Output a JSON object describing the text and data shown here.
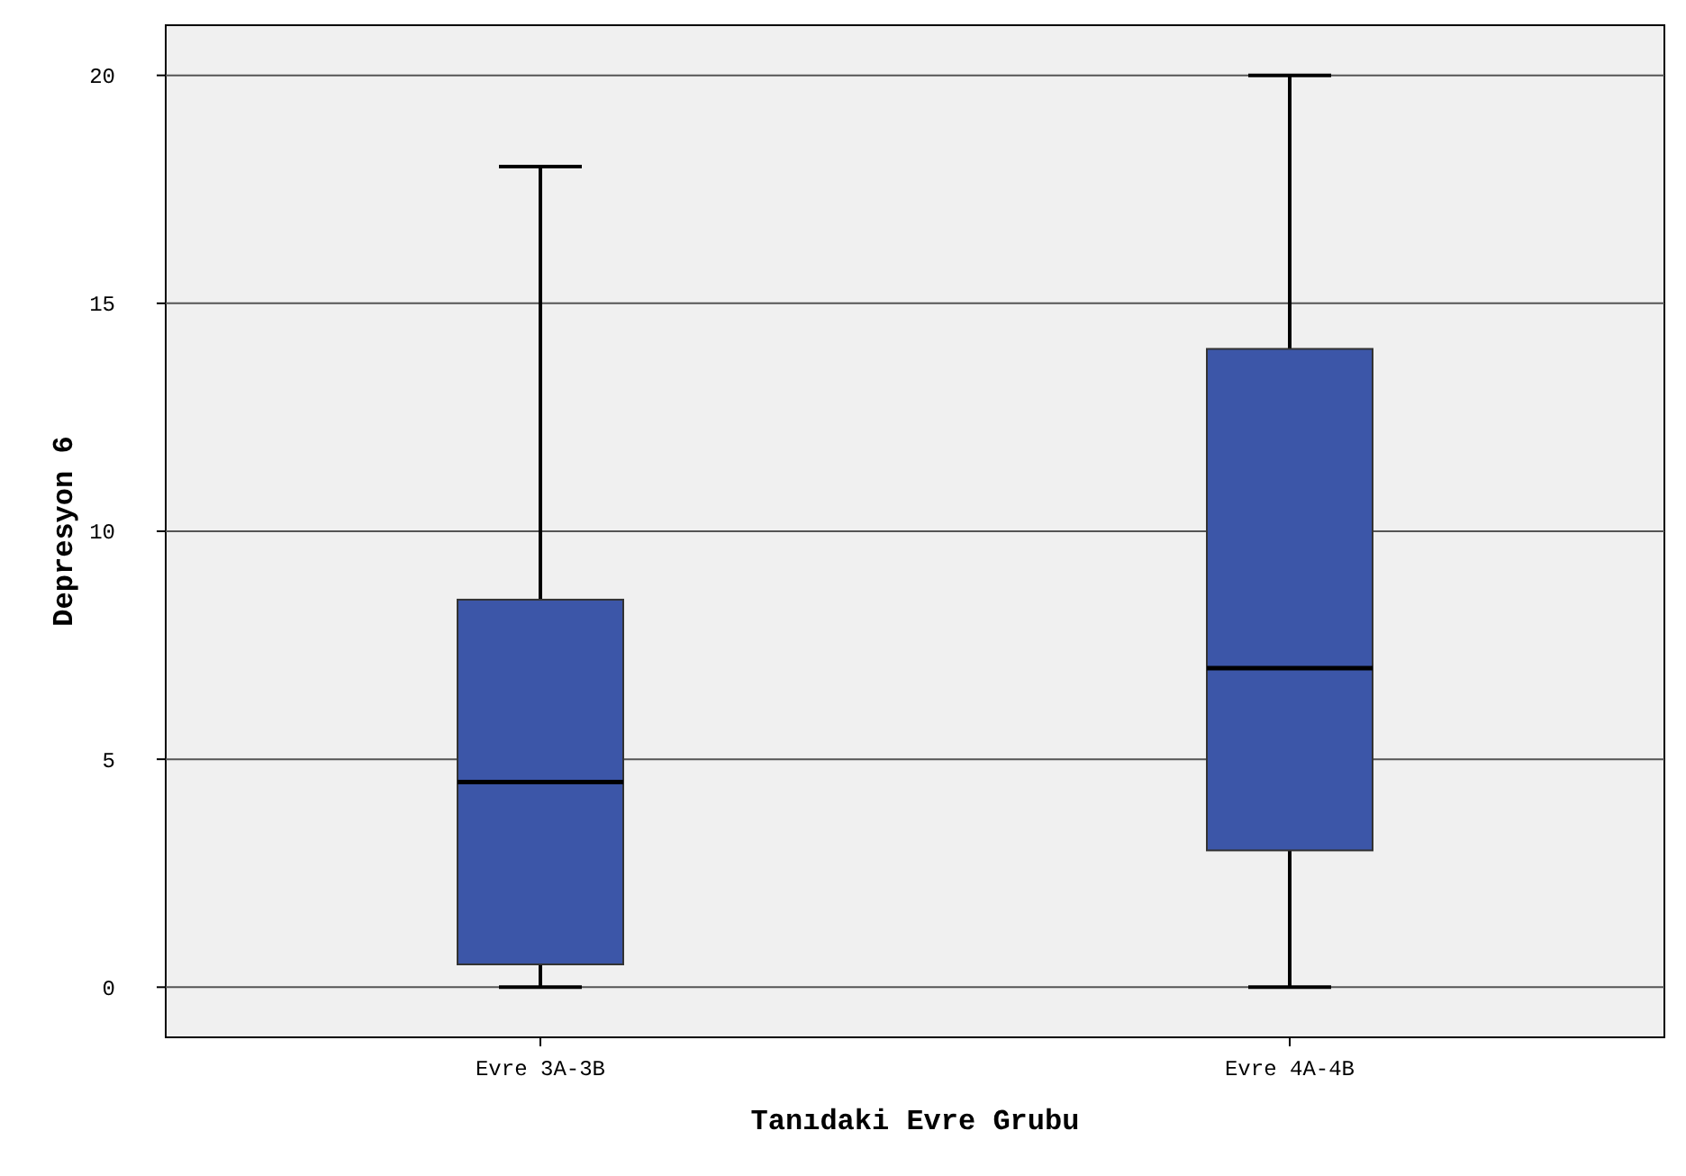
{
  "chart_data": {
    "type": "box",
    "xlabel": "Tanıdaki Evre Grubu",
    "ylabel": "Depresyon 6",
    "categories": [
      "Evre 3A-3B",
      "Evre 4A-4B"
    ],
    "boxes": [
      {
        "low": 0,
        "q1": 0.5,
        "median": 4.5,
        "q3": 8.5,
        "high": 18
      },
      {
        "low": 0,
        "q1": 3,
        "median": 7,
        "q3": 14,
        "high": 20
      }
    ],
    "color": "#3c56a8",
    "ylim": [
      -1.1,
      21.1
    ],
    "yticks": [
      0,
      5,
      10,
      15,
      20
    ],
    "grid": "y"
  }
}
